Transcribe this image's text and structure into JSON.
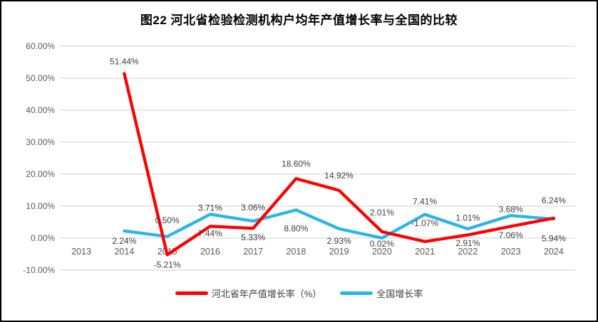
{
  "title": "图22  河北省检验检测机构户均年产值增长率与全国的比较",
  "legend": {
    "items": [
      {
        "label": "河北省年产值增长率（%）",
        "color": "#FF0000"
      },
      {
        "label": "全国增长率",
        "color": "#29B5E8"
      }
    ]
  },
  "chart_data": {
    "type": "line",
    "title": "图22  河北省检验检测机构户均年产值增长率与全国的比较",
    "categories": [
      "2013",
      "2014",
      "2015",
      "2016",
      "2017",
      "2018",
      "2019",
      "2020",
      "2021",
      "2022",
      "2023",
      "2024"
    ],
    "series": [
      {
        "name": "河北省年产值增长率（%）",
        "color": "#FF0000",
        "values": [
          null,
          51.44,
          -5.21,
          3.71,
          3.06,
          18.6,
          14.92,
          2.01,
          -1.07,
          1.01,
          3.68,
          6.24
        ],
        "label_dy": [
          0,
          -17,
          14,
          -26,
          -29,
          -21,
          -21,
          -27,
          -26,
          -24,
          -24,
          -25
        ]
      },
      {
        "name": "全国增长率",
        "color": "#29B5E8",
        "values": [
          null,
          2.24,
          0.5,
          7.44,
          5.33,
          8.8,
          2.93,
          0.02,
          7.41,
          2.91,
          7.06,
          5.94
        ],
        "label_dy": [
          0,
          14,
          -23,
          27,
          23,
          26,
          17,
          8,
          -18,
          20,
          28,
          27
        ]
      }
    ],
    "y_ticks": [
      {
        "label": "60.00%",
        "value": 60
      },
      {
        "label": "50.00%",
        "value": 50
      },
      {
        "label": "40.00%",
        "value": 40
      },
      {
        "label": "30.00%",
        "value": 30
      },
      {
        "label": "20.00%",
        "value": 20
      },
      {
        "label": "10.00%",
        "value": 10
      },
      {
        "label": "0.00%",
        "value": 0
      },
      {
        "label": "-10.00%",
        "value": -10
      }
    ],
    "ylim": [
      -10,
      60
    ],
    "grid": true,
    "legend_position": "bottom",
    "colors": {
      "gridline": "#D9D9D9",
      "axis_text": "#595959",
      "data_label_text": "#3F3F3F",
      "background": "#FFFFFF",
      "border": "#000000"
    }
  }
}
